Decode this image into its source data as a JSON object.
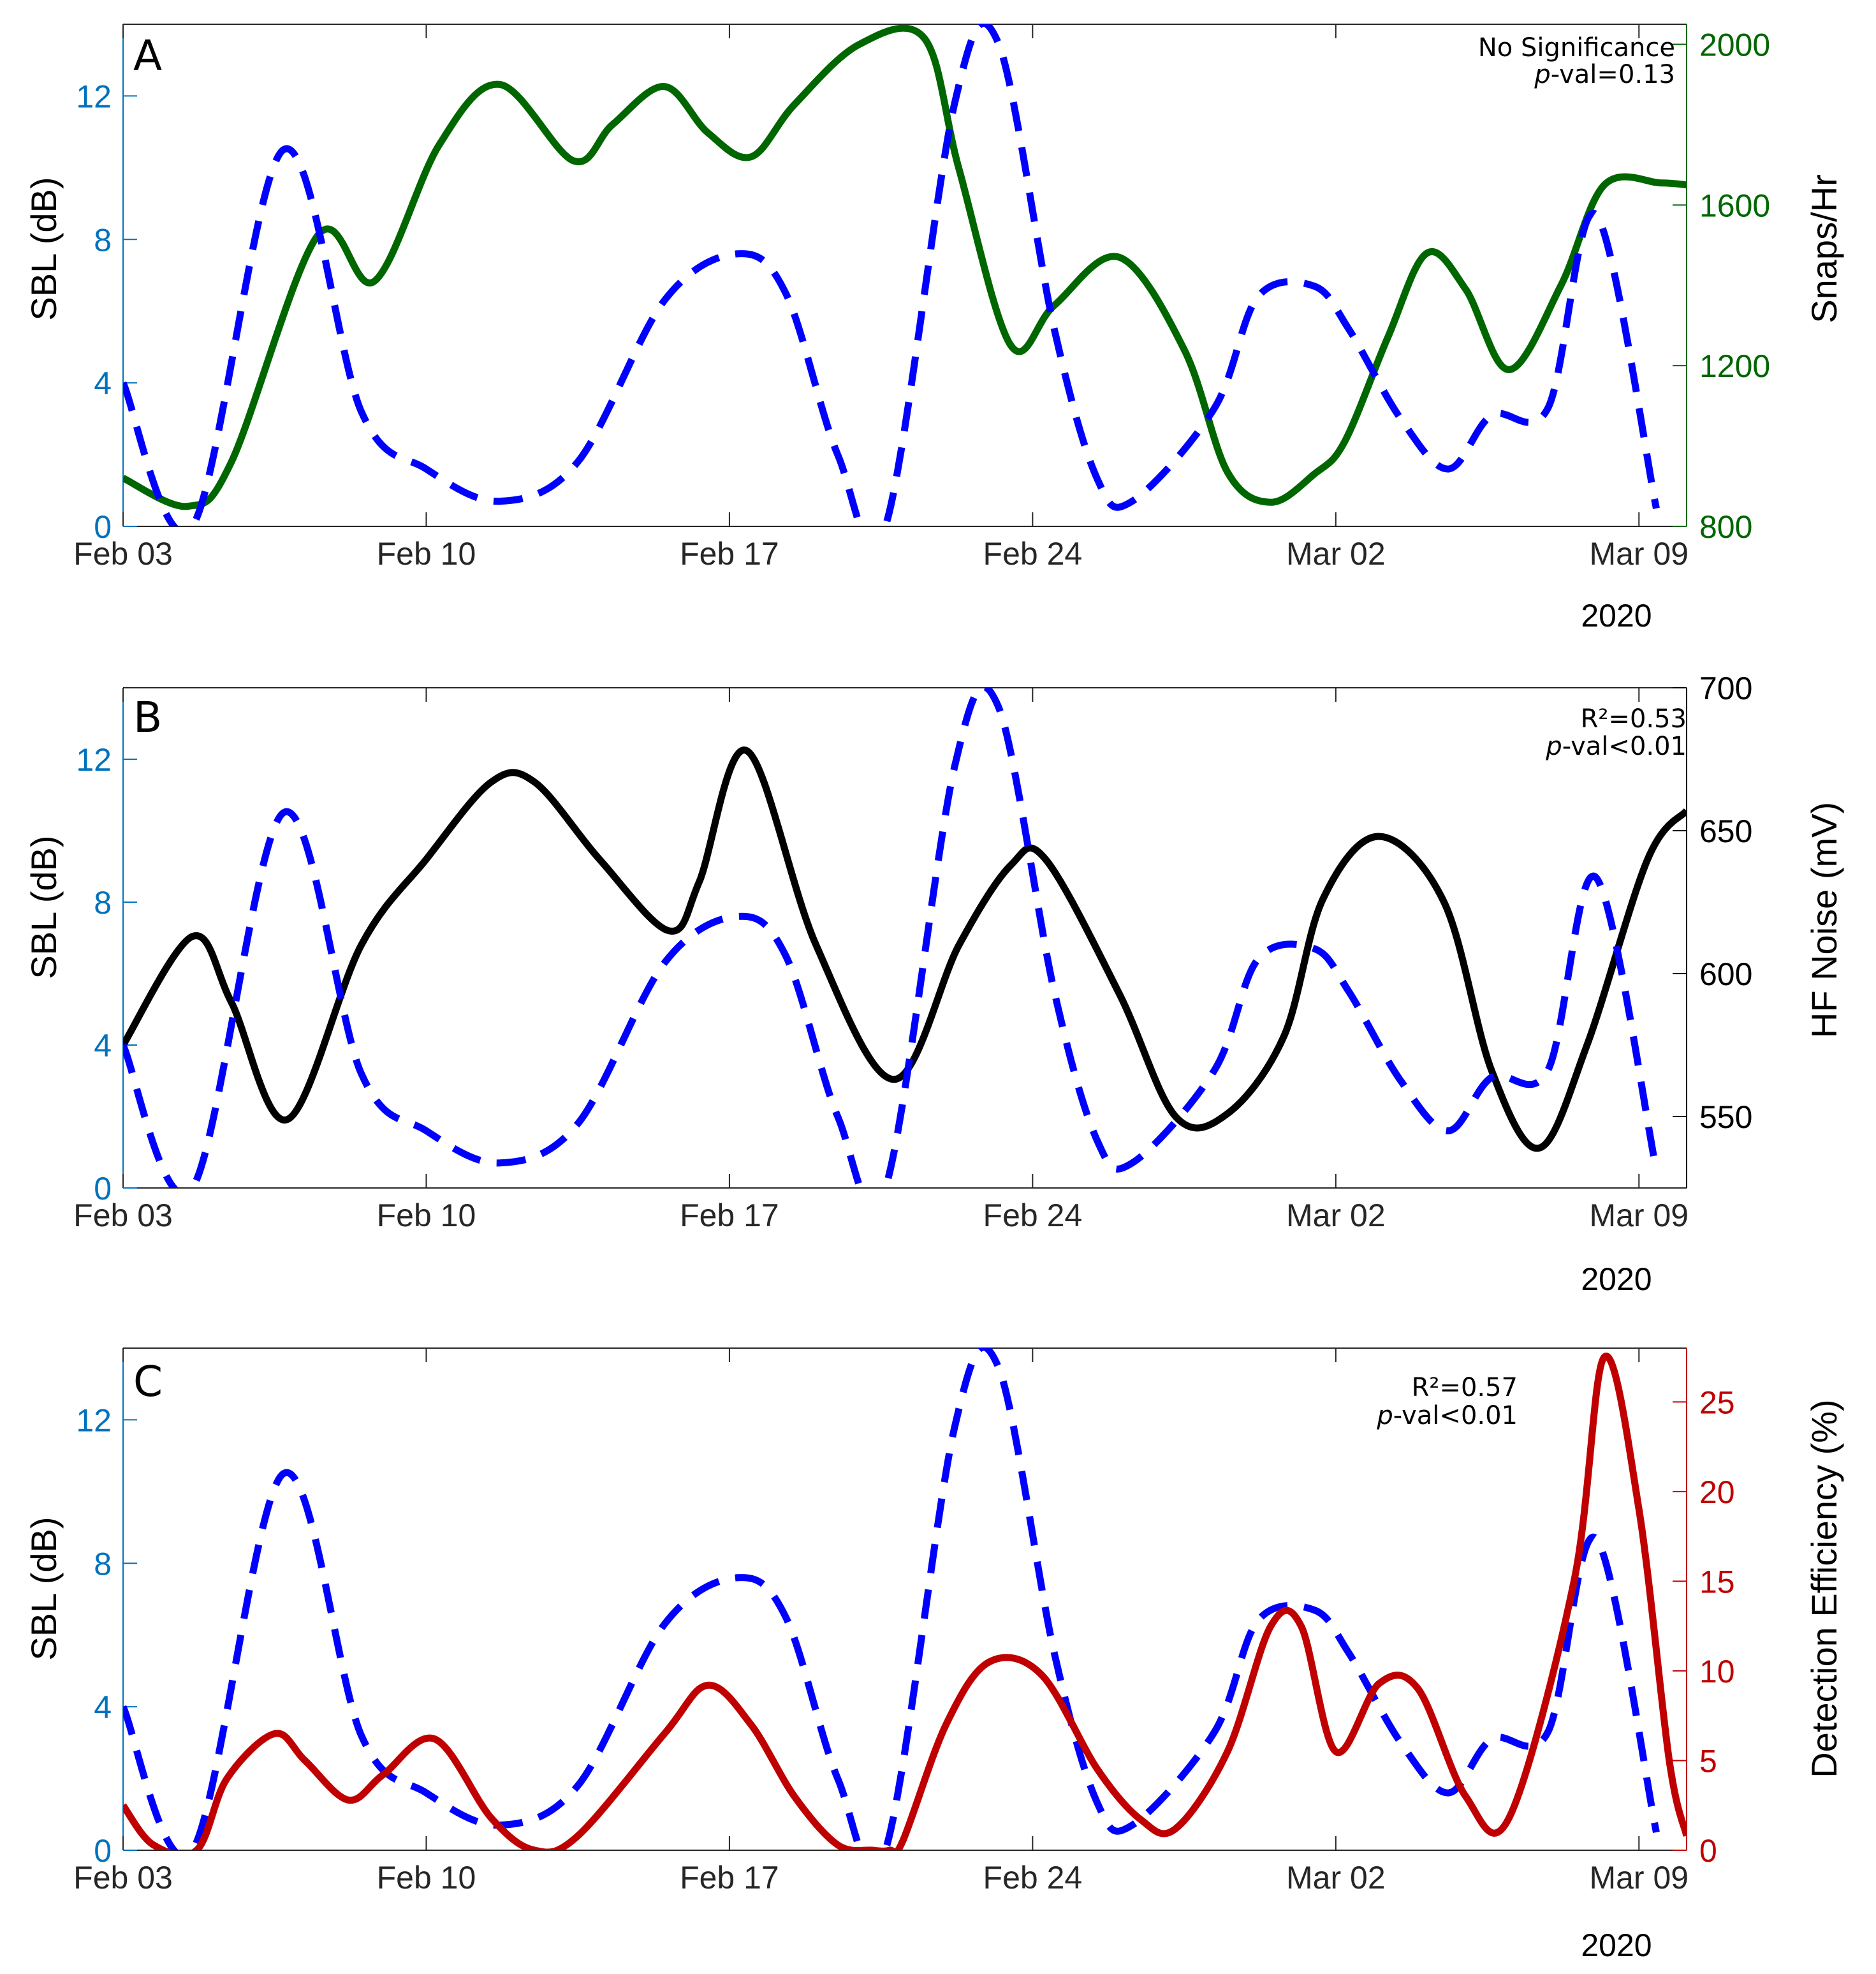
{
  "colors": {
    "sbl": "#0000ff",
    "sbl_axis": "#0072bd",
    "snaps": "#006600",
    "hf": "#000000",
    "det": "#c00000"
  },
  "x_axis": {
    "ticks": [
      0,
      7,
      14,
      21,
      28,
      35
    ],
    "tick_labels": [
      "Feb 03",
      "Feb 10",
      "Feb 17",
      "Feb 24",
      "Mar 02",
      "Mar 09"
    ],
    "year_label": "2020",
    "xlim": [
      0,
      36.1
    ]
  },
  "chart_data": [
    {
      "type": "line",
      "panel": "A",
      "annotation": [
        "No Significance",
        "p-val=0.13"
      ],
      "x_label": "",
      "left_axis": {
        "label": "SBL (dB)",
        "ticks": [
          0,
          4,
          8,
          12
        ],
        "ylim": [
          0,
          14
        ]
      },
      "right_axis": {
        "label": "Snaps/Hr",
        "ticks": [
          800,
          1200,
          1600,
          2000
        ],
        "ylim": [
          800,
          2050
        ]
      },
      "series": [
        {
          "name": "SBL",
          "axis": "left",
          "style": "dashed",
          "x": [
            0,
            1.6,
            3.7,
            5.5,
            7,
            8.7,
            10.5,
            12.5,
            14.2,
            15.3,
            16.5,
            17.6,
            19.2,
            20.2,
            21.5,
            22.5,
            23.3,
            25.2,
            26.2,
            27.5,
            28.3,
            29.5,
            30.6,
            31.6,
            32.9,
            34,
            35.4
          ],
          "y": [
            4.0,
            0.0,
            10.5,
            3.2,
            1.6,
            0.7,
            1.8,
            6.3,
            7.6,
            6.5,
            2.0,
            0.0,
            11.8,
            13.5,
            5.5,
            1.3,
            0.7,
            3.3,
            6.4,
            6.7,
            5.5,
            3.0,
            1.6,
            3.1,
            3.3,
            8.7,
            0.5
          ]
        },
        {
          "name": "Snaps/Hr",
          "axis": "right",
          "style": "solid",
          "x": [
            0,
            1.5,
            2.5,
            4.5,
            5.8,
            7.3,
            8.7,
            10.4,
            11.3,
            12.5,
            13.5,
            14.5,
            15.5,
            17,
            18.5,
            19.3,
            20.5,
            21.5,
            23,
            24.5,
            25.5,
            26.5,
            27.5,
            28.2,
            29.2,
            30.1,
            31,
            32,
            33.2,
            34.2,
            35.5,
            36.1
          ],
          "y": [
            920,
            850,
            960,
            1525,
            1410,
            1750,
            1900,
            1710,
            1800,
            1895,
            1780,
            1720,
            1850,
            2000,
            2015,
            1690,
            1250,
            1350,
            1470,
            1240,
            935,
            860,
            930,
            1010,
            1270,
            1480,
            1390,
            1190,
            1400,
            1650,
            1655,
            1650
          ]
        }
      ]
    },
    {
      "type": "line",
      "panel": "B",
      "annotation": [
        "R²=0.53",
        "p-val<0.01"
      ],
      "x_label": "",
      "left_axis": {
        "label": "SBL (dB)",
        "ticks": [
          0,
          4,
          8,
          12
        ],
        "ylim": [
          0,
          14
        ]
      },
      "right_axis": {
        "label": "HF Noise (mV)",
        "ticks": [
          550,
          600,
          650,
          700
        ],
        "ylim": [
          525,
          700
        ]
      },
      "series": [
        {
          "name": "SBL",
          "axis": "left",
          "style": "dashed",
          "x": [
            0,
            1.6,
            3.7,
            5.5,
            7,
            8.7,
            10.5,
            12.5,
            14.2,
            15.3,
            16.5,
            17.6,
            19.2,
            20.2,
            21.5,
            22.5,
            23.3,
            25.2,
            26.2,
            27.5,
            28.3,
            29.5,
            30.6,
            31.6,
            32.9,
            34,
            35.4
          ],
          "y": [
            4.0,
            0.0,
            10.5,
            3.2,
            1.6,
            0.7,
            1.8,
            6.3,
            7.6,
            6.5,
            2.0,
            0.0,
            11.8,
            13.5,
            5.5,
            1.3,
            0.7,
            3.3,
            6.4,
            6.7,
            5.5,
            3.0,
            1.6,
            3.1,
            3.3,
            8.7,
            0.5
          ]
        },
        {
          "name": "HF Noise",
          "axis": "right",
          "style": "solid",
          "x": [
            0,
            1.6,
            2.5,
            3.8,
            5.5,
            7,
            8.5,
            9.5,
            11,
            12.6,
            13.3,
            14.4,
            16,
            17.8,
            19.3,
            20.5,
            21.3,
            23,
            24.3,
            25.5,
            26.8,
            27.7,
            29,
            30.5,
            31.6,
            32.7,
            33.8,
            35.2,
            36.1
          ],
          "y": [
            575,
            613,
            590,
            549,
            610,
            640,
            667,
            667,
            640,
            615,
            632,
            678,
            610,
            563,
            610,
            638,
            640,
            593,
            550,
            551,
            578,
            626,
            648,
            625,
            566,
            539,
            575,
            640,
            657
          ]
        }
      ]
    },
    {
      "type": "line",
      "panel": "C",
      "annotation": [
        "R²=0.57",
        "p-val<0.01"
      ],
      "x_label": "",
      "left_axis": {
        "label": "SBL (dB)",
        "ticks": [
          0,
          4,
          8,
          12
        ],
        "ylim": [
          0,
          14
        ]
      },
      "right_axis": {
        "label": "Detection Efficiency (%)",
        "ticks": [
          0,
          5,
          10,
          15,
          20,
          25
        ],
        "ylim": [
          0,
          28
        ]
      },
      "series": [
        {
          "name": "SBL",
          "axis": "left",
          "style": "dashed",
          "x": [
            0,
            1.6,
            3.7,
            5.5,
            7,
            8.7,
            10.5,
            12.5,
            14.2,
            15.3,
            16.5,
            17.6,
            19.2,
            20.2,
            21.5,
            22.5,
            23.3,
            25.2,
            26.2,
            27.5,
            28.3,
            29.5,
            30.6,
            31.6,
            32.9,
            34,
            35.4
          ],
          "y": [
            4.0,
            0.0,
            10.5,
            3.2,
            1.6,
            0.7,
            1.8,
            6.3,
            7.6,
            6.5,
            2.0,
            0.0,
            11.8,
            13.5,
            5.5,
            1.3,
            0.7,
            3.3,
            6.4,
            6.7,
            5.5,
            3.0,
            1.6,
            3.1,
            3.3,
            8.7,
            0.5
          ]
        },
        {
          "name": "Detection Efficiency",
          "axis": "right",
          "style": "solid",
          "x": [
            0,
            0.7,
            1.7,
            2.4,
            3.5,
            4.2,
            5.2,
            6,
            7.2,
            8.5,
            9.5,
            10.5,
            12.5,
            13.5,
            14.5,
            15.5,
            16.5,
            17.3,
            17.7,
            18,
            19,
            20,
            21.2,
            22.5,
            23.5,
            24.3,
            25.5,
            26.5,
            27.2,
            28,
            29,
            29.9,
            31,
            32,
            33.5,
            34.2,
            35,
            35.7,
            36.1
          ],
          "y": [
            2.5,
            0.3,
            0,
            4.0,
            6.5,
            5.0,
            2.8,
            4.2,
            6.2,
            1.8,
            0,
            0.8,
            6.5,
            9.2,
            7.0,
            3.0,
            0.3,
            0,
            0,
            0.5,
            7.0,
            10.5,
            9.8,
            4.5,
            1.7,
            1.2,
            5.5,
            12.5,
            12.5,
            5.5,
            9.3,
            9.0,
            3.0,
            1.8,
            15.0,
            27.5,
            19.0,
            5.0,
            0.8
          ]
        }
      ]
    }
  ]
}
